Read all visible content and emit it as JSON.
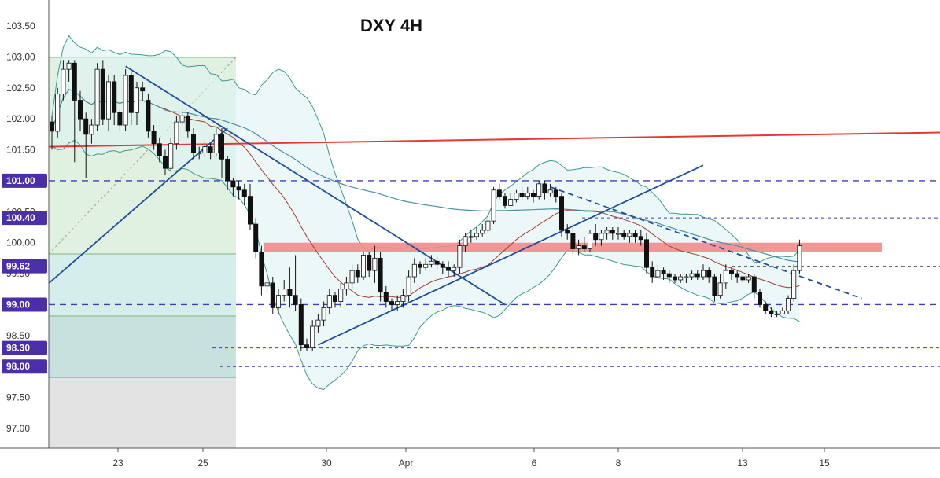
{
  "chart_data": {
    "type": "candlestick",
    "title": "DXY 4H",
    "ylim": [
      96.7,
      103.9
    ],
    "y_ticks": [
      "103.50",
      "103.00",
      "102.50",
      "102.00",
      "101.50",
      "101.00",
      "100.50",
      "100.00",
      "99.50",
      "99.00",
      "98.50",
      "98.00",
      "97.50",
      "97.00"
    ],
    "x_ticks": [
      "23",
      "25",
      "30",
      "Apr",
      "6",
      "8",
      "13",
      "15"
    ],
    "highlighted_levels": [
      "101.00",
      "100.40",
      "99.62",
      "99.00",
      "98.30",
      "98.00"
    ],
    "horizontal_levels": [
      101.0,
      100.4,
      99.62,
      99.0,
      98.3,
      98.0
    ],
    "resistance_zone": [
      99.85,
      100.0
    ],
    "sloped_resistance": [
      101.55,
      101.78
    ],
    "candles": [
      [
        101.95,
        101.8,
        102.05,
        101.5
      ],
      [
        101.8,
        102.4,
        102.5,
        101.7
      ],
      [
        102.4,
        102.8,
        102.95,
        102.3
      ],
      [
        102.8,
        102.9,
        102.95,
        102.6
      ],
      [
        102.9,
        102.3,
        102.95,
        101.3
      ],
      [
        102.3,
        102.0,
        102.45,
        101.8
      ],
      [
        102.0,
        101.75,
        102.1,
        101.05
      ],
      [
        101.75,
        101.9,
        102.0,
        101.6
      ],
      [
        101.9,
        102.8,
        102.9,
        101.8
      ],
      [
        102.8,
        102.0,
        102.95,
        101.9
      ],
      [
        102.0,
        102.6,
        102.7,
        101.8
      ],
      [
        102.6,
        102.1,
        102.7,
        101.9
      ],
      [
        102.1,
        101.9,
        102.15,
        101.8
      ],
      [
        101.9,
        102.7,
        102.8,
        101.8
      ],
      [
        102.7,
        102.1,
        102.75,
        101.9
      ],
      [
        102.1,
        102.5,
        102.6,
        101.9
      ],
      [
        102.5,
        102.45,
        102.6,
        102.3
      ],
      [
        102.3,
        101.8,
        102.4,
        101.7
      ],
      [
        101.8,
        101.6,
        101.9,
        101.5
      ],
      [
        101.6,
        101.4,
        101.7,
        101.3
      ],
      [
        101.4,
        101.2,
        101.5,
        101.1
      ],
      [
        101.2,
        101.6,
        101.7,
        101.15
      ],
      [
        101.6,
        101.95,
        102.05,
        101.5
      ],
      [
        101.95,
        102.05,
        102.15,
        101.9
      ],
      [
        102.05,
        101.8,
        102.1,
        101.7
      ],
      [
        101.75,
        101.45,
        101.85,
        101.35
      ],
      [
        101.45,
        101.45,
        101.55,
        101.35
      ],
      [
        101.45,
        101.55,
        101.65,
        101.4
      ],
      [
        101.55,
        101.45,
        101.6,
        101.35
      ],
      [
        101.45,
        101.75,
        101.85,
        101.4
      ],
      [
        101.75,
        101.35,
        101.85,
        101.05
      ],
      [
        101.35,
        101.0,
        101.4,
        100.85
      ],
      [
        101.0,
        100.9,
        101.05,
        100.75
      ],
      [
        100.9,
        100.85,
        101.0,
        100.7
      ],
      [
        100.85,
        100.75,
        100.95,
        100.6
      ],
      [
        100.75,
        100.3,
        100.95,
        100.2
      ],
      [
        100.3,
        99.85,
        100.4,
        99.75
      ],
      [
        99.85,
        99.3,
        99.95,
        99.15
      ],
      [
        99.3,
        99.35,
        99.45,
        99.2
      ],
      [
        99.35,
        98.95,
        99.45,
        98.85
      ],
      [
        98.95,
        99.15,
        99.25,
        98.85
      ],
      [
        99.15,
        99.25,
        99.4,
        99.05
      ],
      [
        99.25,
        99.15,
        99.6,
        98.95
      ],
      [
        99.15,
        99.0,
        99.8,
        98.9
      ],
      [
        99.0,
        98.35,
        99.1,
        98.25
      ],
      [
        98.35,
        98.3,
        98.45,
        98.25
      ],
      [
        98.3,
        98.65,
        98.75,
        98.25
      ],
      [
        98.65,
        98.75,
        98.85,
        98.55
      ],
      [
        98.75,
        98.95,
        99.05,
        98.65
      ],
      [
        98.95,
        99.15,
        99.25,
        98.85
      ],
      [
        99.15,
        99.05,
        99.2,
        98.95
      ],
      [
        99.05,
        99.25,
        99.35,
        98.95
      ],
      [
        99.25,
        99.35,
        99.45,
        99.15
      ],
      [
        99.35,
        99.55,
        99.65,
        99.25
      ],
      [
        99.55,
        99.45,
        99.65,
        99.35
      ],
      [
        99.45,
        99.8,
        99.85,
        99.4
      ],
      [
        99.8,
        99.55,
        99.85,
        99.45
      ],
      [
        99.55,
        99.75,
        99.95,
        99.35
      ],
      [
        99.75,
        99.2,
        99.85,
        99.05
      ],
      [
        99.2,
        99.05,
        99.3,
        98.95
      ],
      [
        99.05,
        99.0,
        99.1,
        98.9
      ],
      [
        99.0,
        99.05,
        99.15,
        98.9
      ],
      [
        99.05,
        99.15,
        99.25,
        98.95
      ],
      [
        99.15,
        99.45,
        99.55,
        99.05
      ],
      [
        99.45,
        99.65,
        99.75,
        99.35
      ],
      [
        99.65,
        99.6,
        99.7,
        99.5
      ],
      [
        99.6,
        99.65,
        99.75,
        99.55
      ],
      [
        99.65,
        99.7,
        99.8,
        99.6
      ],
      [
        99.7,
        99.65,
        99.8,
        99.55
      ],
      [
        99.65,
        99.6,
        99.7,
        99.5
      ],
      [
        99.6,
        99.55,
        99.7,
        99.45
      ],
      [
        99.55,
        99.6,
        99.65,
        99.45
      ],
      [
        99.6,
        99.95,
        100.05,
        99.5
      ],
      [
        99.95,
        100.1,
        100.15,
        99.85
      ],
      [
        100.1,
        100.1,
        100.2,
        100.0
      ],
      [
        100.1,
        100.15,
        100.25,
        100.05
      ],
      [
        100.15,
        100.2,
        100.3,
        100.1
      ],
      [
        100.2,
        100.35,
        100.45,
        100.15
      ],
      [
        100.35,
        100.85,
        100.9,
        100.3
      ],
      [
        100.85,
        100.75,
        100.95,
        100.7
      ],
      [
        100.75,
        100.6,
        100.8,
        100.55
      ],
      [
        100.6,
        100.7,
        100.8,
        100.6
      ],
      [
        100.7,
        100.8,
        100.85,
        100.65
      ],
      [
        100.8,
        100.75,
        100.9,
        100.7
      ],
      [
        100.75,
        100.8,
        100.9,
        100.7
      ],
      [
        100.8,
        100.75,
        100.85,
        100.65
      ],
      [
        100.75,
        100.95,
        101.0,
        100.7
      ],
      [
        100.95,
        100.8,
        101.0,
        100.7
      ],
      [
        100.8,
        100.85,
        100.95,
        100.75
      ],
      [
        100.85,
        100.75,
        100.9,
        100.65
      ],
      [
        100.75,
        100.2,
        100.8,
        100.1
      ],
      [
        100.2,
        100.15,
        100.3,
        100.05
      ],
      [
        100.15,
        99.9,
        100.3,
        99.8
      ],
      [
        99.9,
        99.95,
        100.05,
        99.8
      ],
      [
        99.95,
        99.9,
        100.1,
        99.85
      ],
      [
        99.9,
        100.15,
        100.2,
        99.85
      ],
      [
        100.15,
        100.05,
        100.3,
        99.95
      ],
      [
        100.05,
        100.15,
        100.2,
        99.95
      ],
      [
        100.15,
        100.2,
        100.25,
        100.05
      ],
      [
        100.2,
        100.15,
        100.25,
        100.05
      ],
      [
        100.15,
        100.15,
        100.25,
        100.05
      ],
      [
        100.15,
        100.1,
        100.2,
        100.05
      ],
      [
        100.1,
        100.15,
        100.2,
        100.0
      ],
      [
        100.15,
        100.1,
        100.2,
        100.0
      ],
      [
        100.1,
        100.05,
        100.2,
        99.95
      ],
      [
        100.05,
        99.6,
        100.15,
        99.5
      ],
      [
        99.6,
        99.45,
        99.7,
        99.35
      ],
      [
        99.45,
        99.55,
        99.65,
        99.45
      ],
      [
        99.55,
        99.5,
        99.6,
        99.4
      ],
      [
        99.5,
        99.45,
        99.55,
        99.35
      ],
      [
        99.45,
        99.4,
        99.5,
        99.35
      ],
      [
        99.4,
        99.45,
        99.5,
        99.35
      ],
      [
        99.45,
        99.45,
        99.5,
        99.35
      ],
      [
        99.45,
        99.5,
        99.55,
        99.4
      ],
      [
        99.5,
        99.45,
        99.55,
        99.4
      ],
      [
        99.45,
        99.55,
        99.65,
        99.4
      ],
      [
        99.55,
        99.45,
        99.6,
        99.35
      ],
      [
        99.45,
        99.15,
        99.5,
        99.05
      ],
      [
        99.15,
        99.35,
        99.5,
        99.1
      ],
      [
        99.35,
        99.55,
        99.65,
        99.25
      ],
      [
        99.55,
        99.5,
        99.6,
        99.4
      ],
      [
        99.5,
        99.45,
        99.55,
        99.35
      ],
      [
        99.45,
        99.4,
        99.5,
        99.35
      ],
      [
        99.4,
        99.45,
        99.5,
        99.35
      ],
      [
        99.45,
        99.2,
        99.5,
        99.1
      ],
      [
        99.2,
        99.0,
        99.25,
        98.95
      ],
      [
        99.0,
        98.9,
        99.05,
        98.85
      ],
      [
        98.9,
        98.85,
        98.95,
        98.8
      ],
      [
        98.85,
        98.85,
        98.9,
        98.8
      ],
      [
        98.85,
        98.9,
        98.95,
        98.85
      ],
      [
        98.9,
        99.1,
        99.15,
        98.85
      ],
      [
        99.1,
        99.55,
        99.65,
        99.05
      ],
      [
        99.55,
        99.95,
        100.05,
        99.5
      ]
    ]
  }
}
